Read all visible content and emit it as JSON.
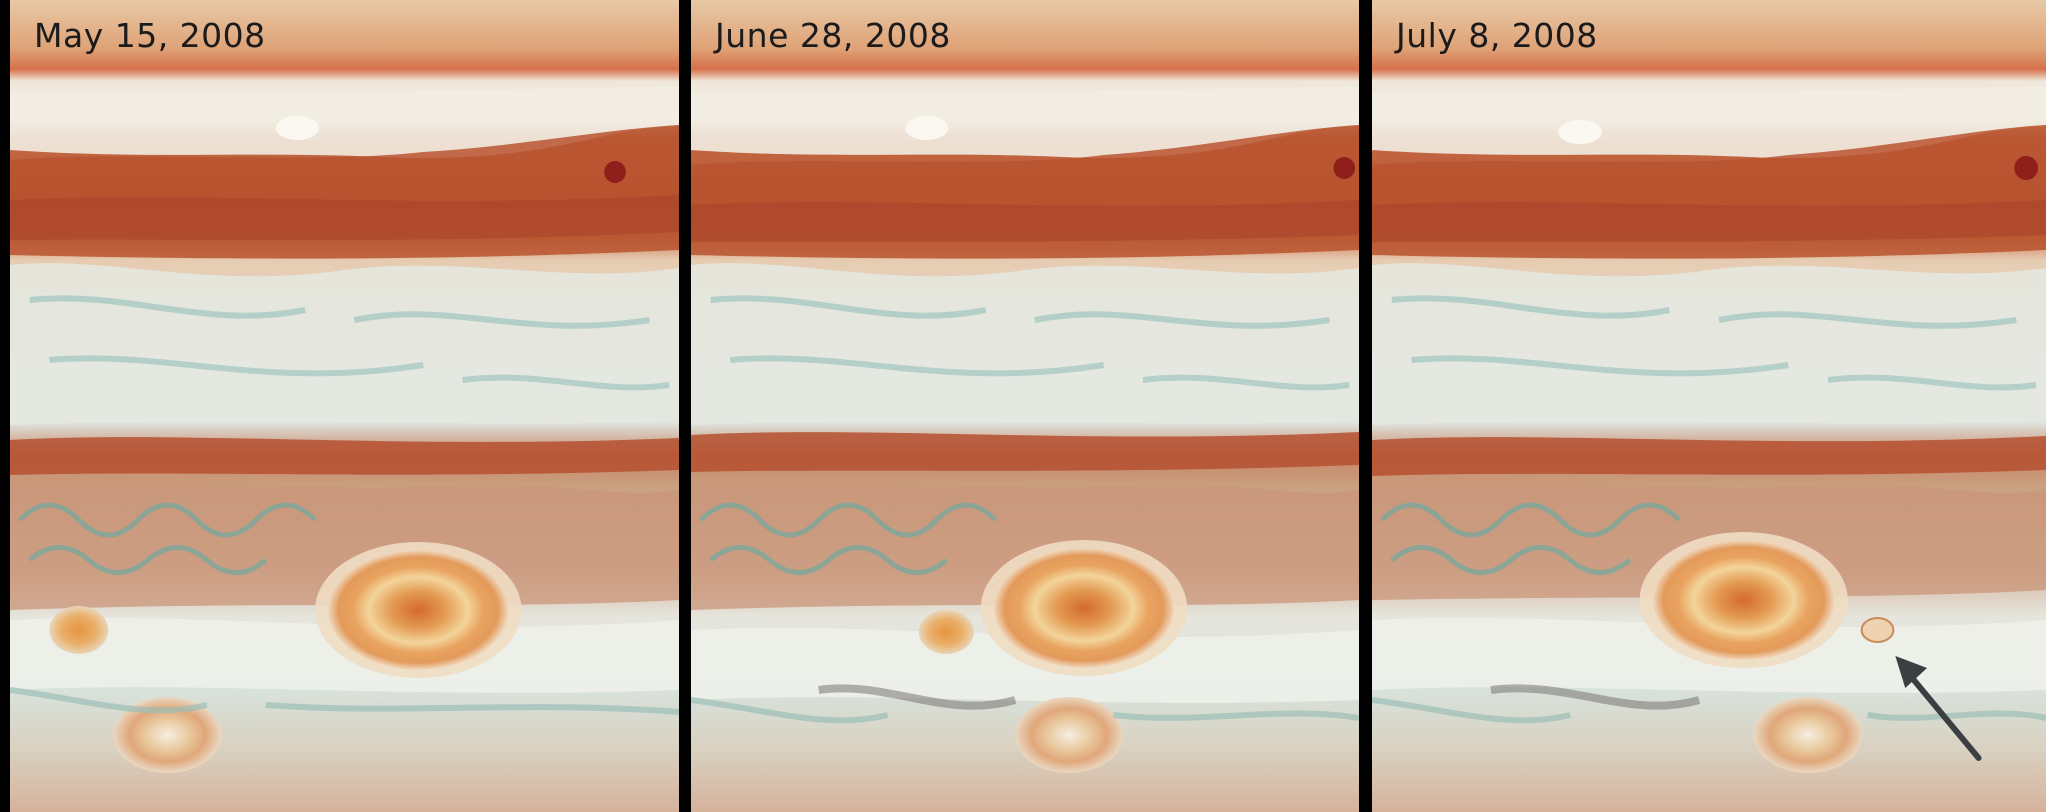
{
  "panels": [
    {
      "date": "May 15, 2008"
    },
    {
      "date": "June 28, 2008"
    },
    {
      "date": "July 8, 2008"
    }
  ],
  "colors": {
    "background": "#000000",
    "belt_red": "#b8552f",
    "zone_white": "#f1ece2",
    "zone_teal": "#cfe3dd",
    "spot_orange": "#e08a3e",
    "arrow": "#3b3f42"
  },
  "annotations": {
    "arrow_icon": "arrow-pointing-to-little-red-spot"
  }
}
